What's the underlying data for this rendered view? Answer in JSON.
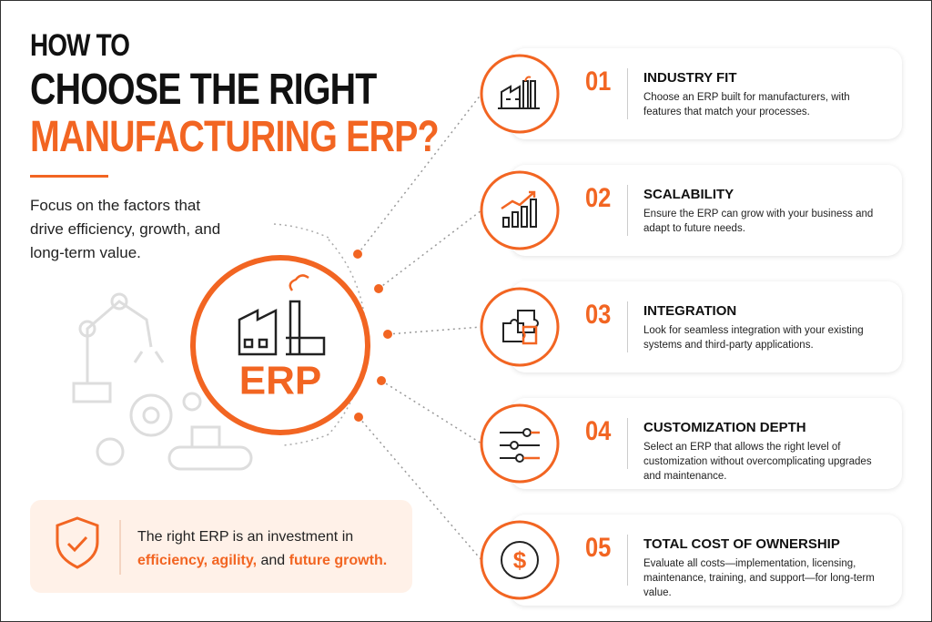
{
  "header": {
    "line1": "HOW TO",
    "line2": "CHOOSE THE RIGHT",
    "line3": "MANUFACTURING ERP?"
  },
  "intro": "Focus on the factors that drive efficiency, growth, and long-term value.",
  "center_label": "ERP",
  "callout": {
    "lead": "The right ERP is an investment in",
    "highlight1": "efficiency, agility,",
    "joiner": "and",
    "highlight2": "future growth."
  },
  "factors": [
    {
      "number": "01",
      "title": "INDUSTRY FIT",
      "description": "Choose an ERP built for manufacturers, with features that match your processes."
    },
    {
      "number": "02",
      "title": "SCALABILITY",
      "description": "Ensure the ERP can grow with your business and adapt to future needs."
    },
    {
      "number": "03",
      "title": "INTEGRATION",
      "description": "Look for seamless integration with your existing systems and third-party applications."
    },
    {
      "number": "04",
      "title": "CUSTOMIZATION DEPTH",
      "description": "Select an ERP that allows the right level of customization without overcomplicating upgrades and maintenance."
    },
    {
      "number": "05",
      "title": "TOTAL COST OF OWNERSHIP",
      "description": "Evaluate all costs—implementation, licensing, maintenance, training, and support—for long-term value."
    }
  ]
}
